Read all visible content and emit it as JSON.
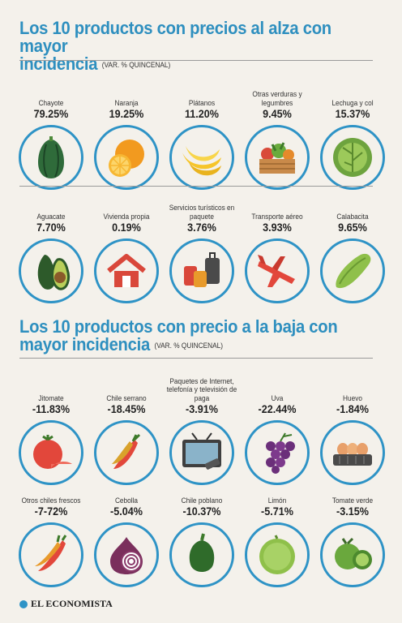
{
  "up": {
    "title_line1": "Los 10 productos con precios al alza con mayor",
    "title_line2": "incidencia",
    "unit": "(VAR. % QUINCENAL)",
    "items": [
      {
        "label": "Chayote",
        "value": "79.25%",
        "icon": "chayote-icon"
      },
      {
        "label": "Naranja",
        "value": "19.25%",
        "icon": "orange-icon"
      },
      {
        "label": "Plátanos",
        "value": "11.20%",
        "icon": "banana-icon"
      },
      {
        "label": "Otras verduras y legumbres",
        "value": "9.45%",
        "icon": "vegetable-crate-icon"
      },
      {
        "label": "Lechuga y col",
        "value": "15.37%",
        "icon": "lettuce-icon"
      },
      {
        "label": "Aguacate",
        "value": "7.70%",
        "icon": "avocado-icon"
      },
      {
        "label": "Vivienda propia",
        "value": "0.19%",
        "icon": "house-icon"
      },
      {
        "label": "Servicios turísticos en paquete",
        "value": "3.76%",
        "icon": "luggage-icon"
      },
      {
        "label": "Transporte aéreo",
        "value": "3.93%",
        "icon": "airplane-icon"
      },
      {
        "label": "Calabacita",
        "value": "9.65%",
        "icon": "zucchini-icon"
      }
    ]
  },
  "down": {
    "title_line1": "Los 10 productos con precio a la baja con",
    "title_line2": "mayor incidencia",
    "unit": "(VAR. % QUINCENAL)",
    "items": [
      {
        "label": "Jitomate",
        "value": "-11.83%",
        "icon": "tomato-icon"
      },
      {
        "label": "Chile serrano",
        "value": "-18.45%",
        "icon": "chili-icon"
      },
      {
        "label": "Paquetes de Internet, telefonía y televisión de paga",
        "value": "-3.91%",
        "icon": "tv-icon"
      },
      {
        "label": "Uva",
        "value": "-22.44%",
        "icon": "grapes-icon"
      },
      {
        "label": "Huevo",
        "value": "-1.84%",
        "icon": "eggs-icon"
      },
      {
        "label": "Otros chiles frescos",
        "value": "-7-72%",
        "icon": "chilies-icon"
      },
      {
        "label": "Cebolla",
        "value": "-5.04%",
        "icon": "onion-icon"
      },
      {
        "label": "Chile poblano",
        "value": "-10.37%",
        "icon": "poblano-icon"
      },
      {
        "label": "Limón",
        "value": "-5.71%",
        "icon": "lime-icon"
      },
      {
        "label": "Tomate verde",
        "value": "-3.15%",
        "icon": "green-tomato-icon"
      }
    ]
  },
  "footer": {
    "brand": "EL ECONOMISTA"
  },
  "colors": {
    "accent": "#2e93c6",
    "title": "#2e8fbf",
    "background": "#f4f1eb"
  }
}
